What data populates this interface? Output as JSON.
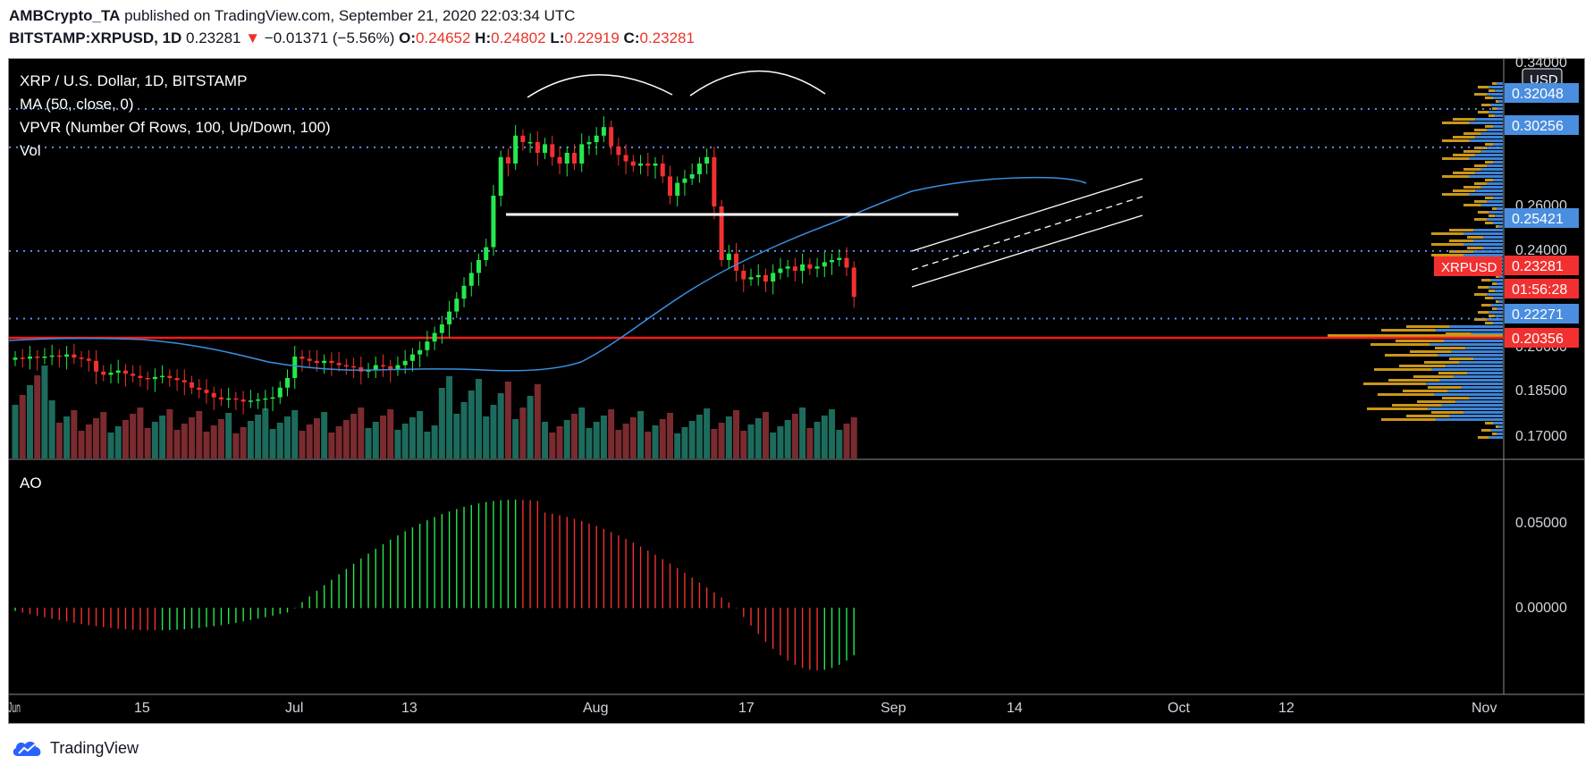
{
  "header": {
    "publisher": "AMBCrypto_TA",
    "published_text": "published on TradingView.com, September 21, 2020 22:03:34 UTC",
    "symbol": "BITSTAMP:XRPUSD, 1D",
    "last": "0.23281",
    "change_arrow": "▼",
    "change": "−0.01371 (−5.56%)",
    "o_label": "O:",
    "o": "0.24652",
    "h_label": "H:",
    "h": "0.24802",
    "l_label": "L:",
    "l": "0.22919",
    "c_label": "C:",
    "c": "0.23281"
  },
  "legend": {
    "title": "XRP / U.S. Dollar, 1D, BITSTAMP",
    "ma": "MA (50, close, 0)",
    "vpvr": "VPVR (Number Of Rows, 100, Up/Down, 100)",
    "vol": "Vol",
    "ao": "AO"
  },
  "price_axis": {
    "currency": "USD",
    "ticks": [
      "0.34000",
      "0.26000",
      "0.24000",
      "0.20000",
      "0.18500",
      "0.17000"
    ],
    "ao_ticks": [
      "0.05000",
      "0.00000"
    ]
  },
  "price_labels": [
    {
      "text": "0.32048",
      "color": "#4a8ee0"
    },
    {
      "text": "0.30256",
      "color": "#4a8ee0"
    },
    {
      "text": "0.25421",
      "color": "#4a8ee0"
    },
    {
      "text": "0.23281",
      "color": "#f23030"
    },
    {
      "text": "01:56:28",
      "color": "#f23030"
    },
    {
      "text": "0.22271",
      "color": "#4a8ee0"
    },
    {
      "text": "0.20356",
      "color": "#f23030"
    }
  ],
  "symbol_tag": "XRPUSD",
  "time_axis": [
    "Jun",
    "15",
    "Jul",
    "13",
    "Aug",
    "17",
    "Sep",
    "14",
    "Oct",
    "12",
    "Nov"
  ],
  "brand": "TradingView",
  "colors": {
    "up": "#26e84c",
    "down": "#f23030",
    "ma": "#3a8fe0",
    "level": "#5d8ef0",
    "support": "#ff1a1a"
  },
  "chart_data": {
    "type": "candlestick",
    "pair": "XRP / U.S. Dollar",
    "interval": "1D",
    "exchange": "BITSTAMP",
    "horizontal_levels": [
      0.32048,
      0.30256,
      0.25421,
      0.22271,
      0.20356
    ],
    "current_price": 0.23281,
    "price_range": [
      0.168,
      0.342
    ]
  }
}
